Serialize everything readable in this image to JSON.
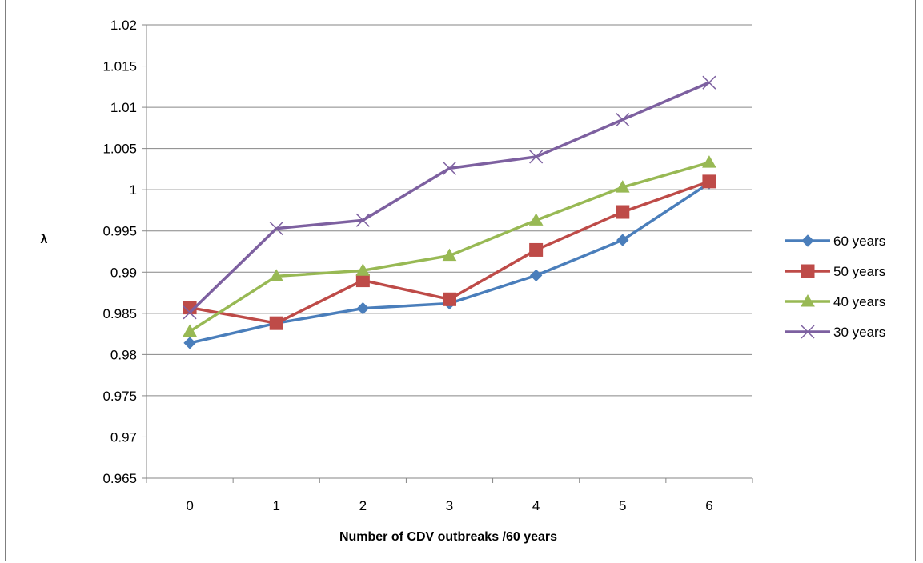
{
  "chart_data": {
    "type": "line",
    "title": "",
    "xlabel": "Number of CDV outbreaks /60 years",
    "ylabel": "λ",
    "categories": [
      "0",
      "1",
      "2",
      "3",
      "4",
      "5",
      "6"
    ],
    "x": [
      0,
      1,
      2,
      3,
      4,
      5,
      6
    ],
    "ylim": [
      0.965,
      1.02
    ],
    "yticks": [
      "0.965",
      "0.97",
      "0.975",
      "0.98",
      "0.985",
      "0.99",
      "0.995",
      "1",
      "1.005",
      "1.01",
      "1.015",
      "1.02"
    ],
    "grid": true,
    "legend_position": "right",
    "series": [
      {
        "name": "60 years",
        "color": "#4a7ebb",
        "marker": "diamond",
        "values": [
          0.9814,
          0.9838,
          0.9856,
          0.9862,
          0.9896,
          0.9939,
          1.0008
        ]
      },
      {
        "name": "50 years",
        "color": "#be4b48",
        "marker": "square",
        "values": [
          0.9857,
          0.9838,
          0.989,
          0.9867,
          0.9927,
          0.9973,
          1.001
        ]
      },
      {
        "name": "40 years",
        "color": "#98b954",
        "marker": "triangle",
        "values": [
          0.9828,
          0.9895,
          0.9902,
          0.992,
          0.9963,
          1.0003,
          1.0033
        ]
      },
      {
        "name": "30 years",
        "color": "#7d60a0",
        "marker": "x",
        "values": [
          0.9851,
          0.9953,
          0.9963,
          1.0026,
          1.004,
          1.0085,
          1.013
        ]
      }
    ]
  }
}
